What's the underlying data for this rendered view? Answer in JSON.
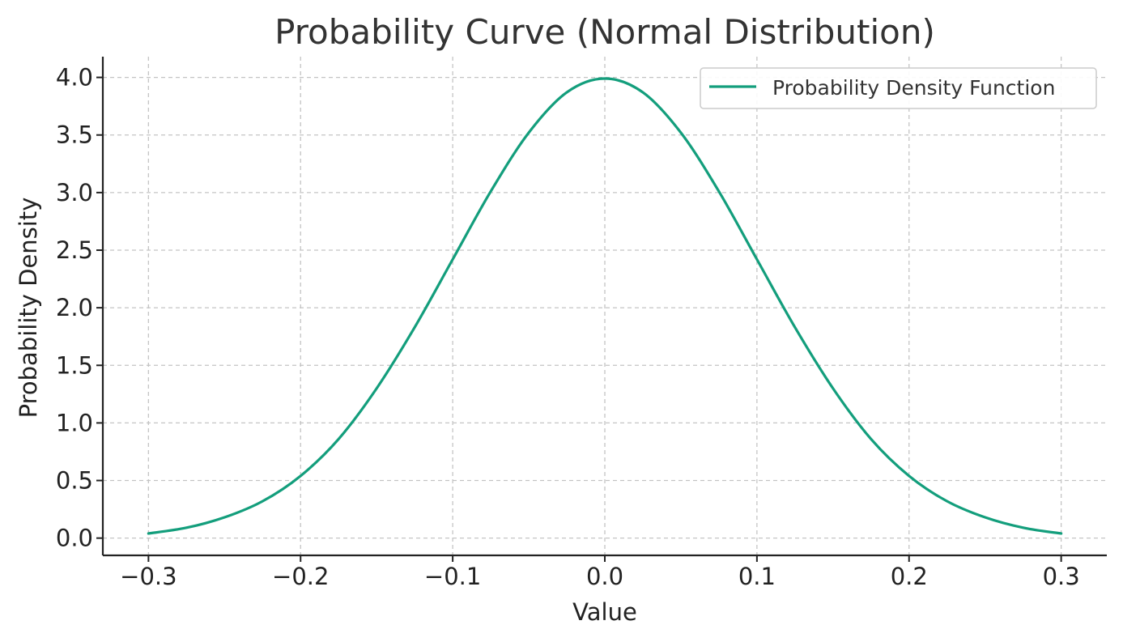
{
  "chart_data": {
    "type": "line",
    "title": "Probability Curve (Normal Distribution)",
    "xlabel": "Value",
    "ylabel": "Probability Density",
    "xlim": [
      -0.33,
      0.33
    ],
    "ylim": [
      -0.15,
      4.18
    ],
    "x_ticks": [
      -0.3,
      -0.2,
      -0.1,
      0.0,
      0.1,
      0.2,
      0.3
    ],
    "x_tick_labels": [
      "−0.3",
      "−0.2",
      "−0.1",
      "0.0",
      "0.1",
      "0.2",
      "0.3"
    ],
    "y_ticks": [
      0.0,
      0.5,
      1.0,
      1.5,
      2.0,
      2.5,
      3.0,
      3.5,
      4.0
    ],
    "y_tick_labels": [
      "0.0",
      "0.5",
      "1.0",
      "1.5",
      "2.0",
      "2.5",
      "3.0",
      "3.5",
      "4.0"
    ],
    "grid": true,
    "legend_position": "top-right",
    "series": [
      {
        "name": "Probability Density Function",
        "color": "#139e7c",
        "x": [
          -0.3,
          -0.275,
          -0.25,
          -0.225,
          -0.2,
          -0.175,
          -0.15,
          -0.125,
          -0.1,
          -0.075,
          -0.05,
          -0.025,
          0.0,
          0.025,
          0.05,
          0.075,
          0.1,
          0.125,
          0.15,
          0.175,
          0.2,
          0.225,
          0.25,
          0.275,
          0.3
        ],
        "y": [
          0.04,
          0.09,
          0.18,
          0.32,
          0.54,
          0.86,
          1.3,
          1.83,
          2.42,
          3.01,
          3.52,
          3.87,
          3.99,
          3.87,
          3.52,
          3.01,
          2.42,
          1.83,
          1.3,
          0.86,
          0.54,
          0.32,
          0.18,
          0.09,
          0.04
        ]
      }
    ]
  }
}
